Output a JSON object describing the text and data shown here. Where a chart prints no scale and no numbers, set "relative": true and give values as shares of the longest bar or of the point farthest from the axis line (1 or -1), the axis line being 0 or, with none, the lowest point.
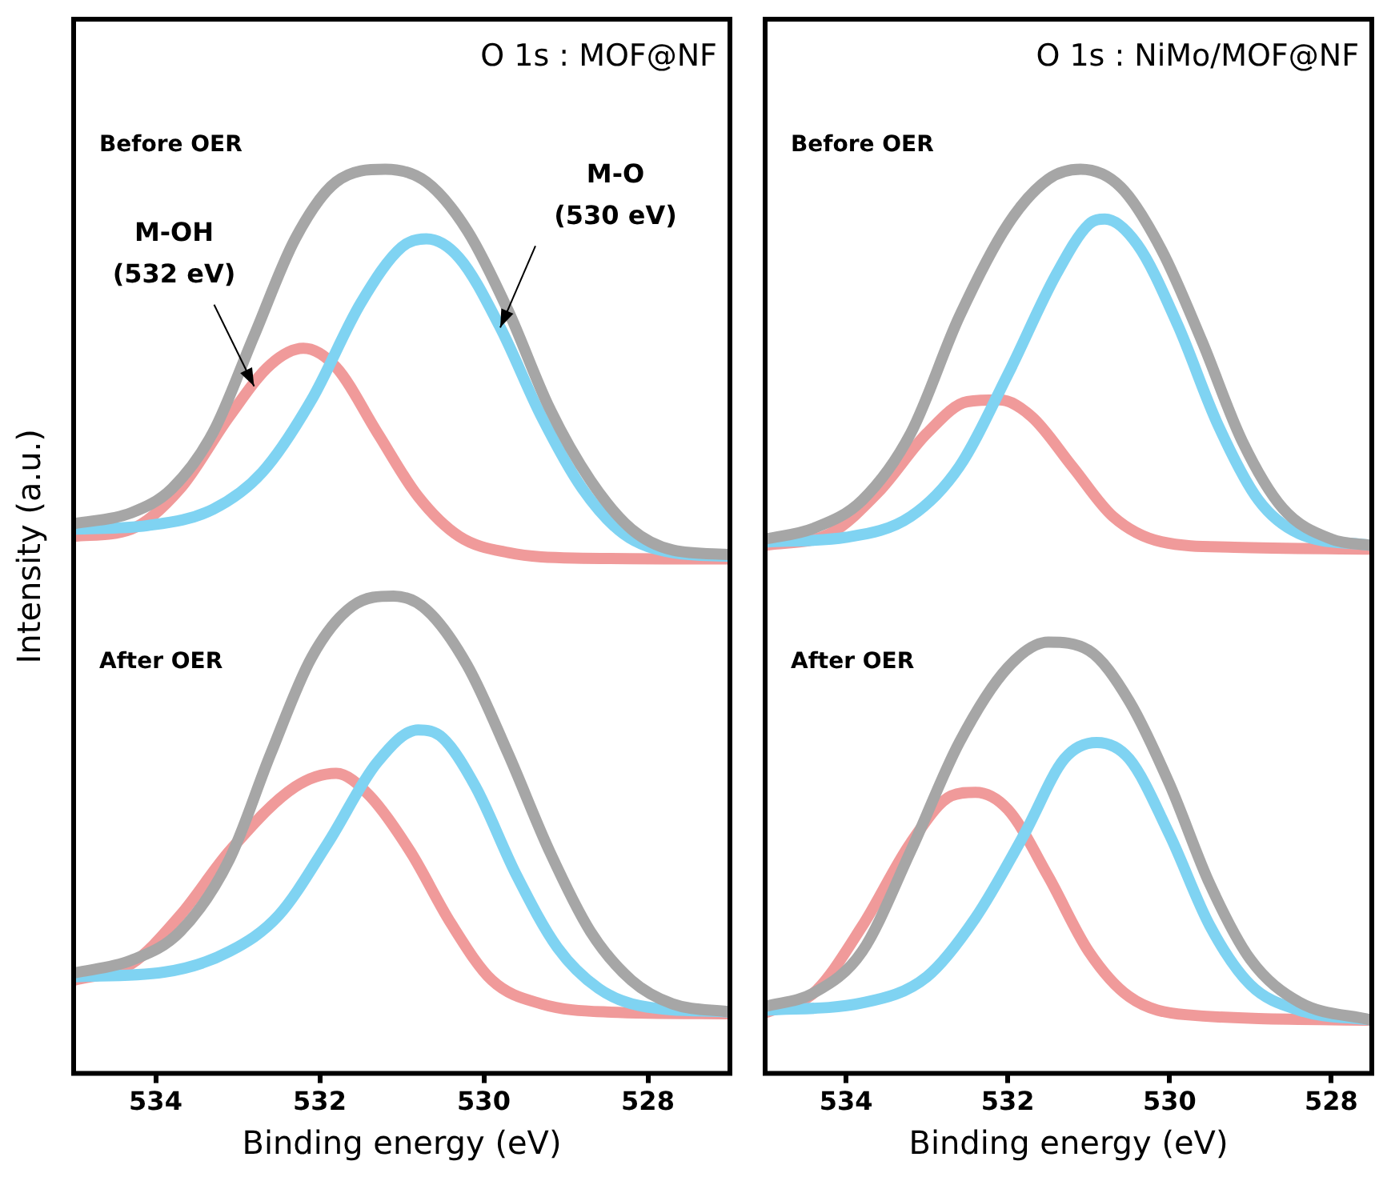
{
  "chart_data": [
    {
      "type": "line",
      "title": "O 1s : MOF@NF",
      "xlabel": "Binding energy (eV)",
      "ylabel": "Intensity (a.u.)",
      "relative": true,
      "tick_labels": "x",
      "marker": "none",
      "xlim": [
        535,
        527
      ],
      "xticks": [
        534,
        532,
        530,
        528
      ],
      "annotations": [
        "Before OER",
        "After OER",
        {
          "text": "M-OH\n(532 eV)",
          "x": 532.8,
          "y": 0.76
        },
        {
          "text": "M-O\n(530 eV)",
          "x": 529.8,
          "y": 0.825
        }
      ],
      "series": [
        {
          "color": "#a6a6a6",
          "x": [
            535.0,
            534.3,
            533.8,
            533.3,
            532.8,
            532.3,
            531.8,
            531.2,
            530.7,
            530.2,
            529.7,
            529.2,
            528.7,
            528.2,
            527.7,
            527.0
          ],
          "values": [
            0.608,
            0.62,
            0.647,
            0.709,
            0.816,
            0.923,
            0.986,
            1,
            0.986,
            0.932,
            0.843,
            0.736,
            0.656,
            0.602,
            0.579,
            0.574
          ]
        },
        {
          "color": "#7fd3f2",
          "x": [
            535.0,
            534.1,
            533.3,
            532.7,
            532.1,
            531.5,
            531.0,
            530.7,
            530.3,
            529.8,
            529.3,
            528.8,
            528.3,
            527.7,
            527.0
          ],
          "values": [
            0.602,
            0.606,
            0.624,
            0.665,
            0.745,
            0.852,
            0.914,
            0.923,
            0.902,
            0.825,
            0.727,
            0.647,
            0.597,
            0.576,
            0.572
          ]
        },
        {
          "color": "#f09a9a",
          "x": [
            535.0,
            534.3,
            533.7,
            533.1,
            532.6,
            532.2,
            531.8,
            531.3,
            530.8,
            530.3,
            529.7,
            528.9,
            527.0
          ],
          "values": [
            0.594,
            0.602,
            0.647,
            0.727,
            0.784,
            0.802,
            0.781,
            0.709,
            0.638,
            0.594,
            0.576,
            0.57,
            0.569
          ]
        },
        {
          "color": "#a6a6a6",
          "x": [
            535.0,
            534.3,
            533.7,
            533.1,
            532.6,
            532.1,
            531.6,
            531.1,
            530.7,
            530.2,
            529.7,
            529.2,
            528.7,
            528.2,
            527.7,
            527.0
          ],
          "values": [
            0.111,
            0.125,
            0.157,
            0.237,
            0.353,
            0.46,
            0.517,
            0.528,
            0.513,
            0.451,
            0.353,
            0.246,
            0.157,
            0.103,
            0.077,
            0.068
          ]
        },
        {
          "color": "#7fd3f2",
          "x": [
            535.0,
            533.9,
            533.1,
            532.5,
            531.9,
            531.3,
            530.8,
            530.5,
            530.1,
            529.6,
            529.1,
            528.6,
            528.1,
            527.0
          ],
          "values": [
            0.107,
            0.112,
            0.135,
            0.175,
            0.255,
            0.344,
            0.38,
            0.371,
            0.317,
            0.219,
            0.139,
            0.094,
            0.075,
            0.068
          ]
        },
        {
          "color": "#f09a9a",
          "x": [
            535.0,
            534.3,
            533.7,
            533.1,
            532.3,
            531.8,
            531.4,
            530.9,
            530.4,
            529.9,
            529.3,
            528.5,
            527.0
          ],
          "values": [
            0.103,
            0.121,
            0.175,
            0.246,
            0.317,
            0.332,
            0.308,
            0.246,
            0.166,
            0.103,
            0.077,
            0.068,
            0.066
          ]
        }
      ]
    },
    {
      "type": "line",
      "title": "O 1s : NiMo/MOF@NF",
      "xlabel": "Binding energy (eV)",
      "relative": true,
      "tick_labels": "x",
      "marker": "none",
      "xlim": [
        535,
        527.5
      ],
      "xticks": [
        534,
        532,
        530,
        528
      ],
      "annotations": [
        "Before OER",
        "After OER"
      ],
      "series": [
        {
          "color": "#a6a6a6",
          "x": [
            535.0,
            534.4,
            533.8,
            533.2,
            532.6,
            532.0,
            531.5,
            531.1,
            530.6,
            530.1,
            529.6,
            529.1,
            528.6,
            528.0,
            527.5
          ],
          "values": [
            0.591,
            0.603,
            0.634,
            0.708,
            0.837,
            0.939,
            0.989,
            1,
            0.98,
            0.911,
            0.81,
            0.699,
            0.625,
            0.591,
            0.584
          ]
        },
        {
          "color": "#7fd3f2",
          "x": [
            535.0,
            534.0,
            533.2,
            532.6,
            532.0,
            531.4,
            531.0,
            530.8,
            530.4,
            529.9,
            529.4,
            528.9,
            528.4,
            527.5
          ],
          "values": [
            0.588,
            0.593,
            0.616,
            0.671,
            0.773,
            0.884,
            0.939,
            0.945,
            0.917,
            0.828,
            0.717,
            0.634,
            0.597,
            0.584
          ]
        },
        {
          "color": "#f09a9a",
          "x": [
            535.0,
            534.2,
            533.6,
            533.0,
            532.5,
            532.1,
            531.7,
            531.2,
            530.7,
            530.1,
            529.2,
            527.5
          ],
          "values": [
            0.584,
            0.597,
            0.643,
            0.708,
            0.743,
            0.745,
            0.726,
            0.671,
            0.616,
            0.588,
            0.582,
            0.58
          ]
        },
        {
          "color": "#a6a6a6",
          "x": [
            535.0,
            534.4,
            533.8,
            533.2,
            532.6,
            532.0,
            531.5,
            531.0,
            530.5,
            530.0,
            529.5,
            529.0,
            528.4,
            527.5
          ],
          "values": [
            0.074,
            0.089,
            0.135,
            0.246,
            0.366,
            0.449,
            0.477,
            0.468,
            0.412,
            0.32,
            0.209,
            0.126,
            0.079,
            0.059
          ]
        },
        {
          "color": "#7fd3f2",
          "x": [
            535.0,
            533.8,
            533.0,
            532.4,
            531.8,
            531.3,
            530.9,
            530.5,
            530.0,
            529.5,
            529.0,
            528.4,
            527.5
          ],
          "values": [
            0.07,
            0.078,
            0.107,
            0.172,
            0.264,
            0.348,
            0.366,
            0.348,
            0.264,
            0.163,
            0.098,
            0.07,
            0.059
          ]
        },
        {
          "color": "#f09a9a",
          "x": [
            535.0,
            534.4,
            533.8,
            533.2,
            532.7,
            532.4,
            532.0,
            531.5,
            531.0,
            530.5,
            529.8,
            527.5
          ],
          "values": [
            0.067,
            0.089,
            0.163,
            0.255,
            0.307,
            0.311,
            0.292,
            0.218,
            0.135,
            0.085,
            0.065,
            0.059
          ]
        }
      ]
    }
  ]
}
